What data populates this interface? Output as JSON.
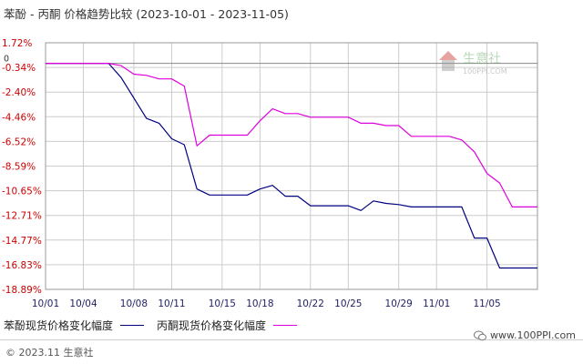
{
  "title": "苯酚 - 丙酮 价格趋势比较 (2023-10-01 - 2023-11-05)",
  "watermark": {
    "brand": "生意社",
    "url": "100PPI.COM"
  },
  "legend": {
    "series1_label": "苯酚现货价格变化幅度",
    "series2_label": "丙酮现货价格变化幅度"
  },
  "footer": {
    "copyright": "© 2023.11 生意社",
    "source": "www.100PPI.com"
  },
  "colors": {
    "series1": "#000080",
    "series2": "#dd00dd",
    "tick_label": "#cc0000",
    "grid": "#cccccc",
    "zero_line": "#888888"
  },
  "chart_data": {
    "type": "line",
    "title": "苯酚 - 丙酮 价格趋势比较 (2023-10-01 - 2023-11-05)",
    "xlabel": "",
    "ylabel": "",
    "x_start": "10/01",
    "x_ticks": [
      "10/01",
      "10/04",
      "10/08",
      "10/11",
      "10/15",
      "10/18",
      "10/22",
      "10/25",
      "10/29",
      "11/01",
      "11/05"
    ],
    "x_tick_days": [
      0,
      3,
      7,
      10,
      14,
      17,
      21,
      24,
      28,
      31,
      35
    ],
    "y_ticks": [
      "1.72%",
      "-0.34%",
      "-2.40%",
      "-4.46%",
      "-6.52%",
      "-8.59%",
      "-10.65%",
      "-12.71%",
      "-14.77%",
      "-16.83%",
      "-18.89%"
    ],
    "ylim": [
      -18.89,
      1.72
    ],
    "zero_label": "0",
    "grid": true,
    "legend_position": "bottom-left",
    "series": [
      {
        "name": "苯酚现货价格变化幅度",
        "color": "#000080",
        "points": [
          [
            0,
            0
          ],
          [
            1,
            0
          ],
          [
            2,
            0
          ],
          [
            3,
            0
          ],
          [
            4,
            0
          ],
          [
            5,
            0
          ],
          [
            6,
            -1.2
          ],
          [
            7,
            -2.9
          ],
          [
            8,
            -4.6
          ],
          [
            9,
            -5.0
          ],
          [
            10,
            -6.3
          ],
          [
            11,
            -6.8
          ],
          [
            12,
            -10.5
          ],
          [
            13,
            -11.0
          ],
          [
            14,
            -11.0
          ],
          [
            15,
            -11.0
          ],
          [
            16,
            -11.0
          ],
          [
            17,
            -10.5
          ],
          [
            18,
            -10.2
          ],
          [
            19,
            -11.1
          ],
          [
            20,
            -11.1
          ],
          [
            21,
            -11.9
          ],
          [
            22,
            -11.9
          ],
          [
            23,
            -11.9
          ],
          [
            24,
            -11.9
          ],
          [
            25,
            -12.3
          ],
          [
            26,
            -11.5
          ],
          [
            27,
            -11.7
          ],
          [
            28,
            -11.8
          ],
          [
            29,
            -12.0
          ],
          [
            30,
            -12.0
          ],
          [
            31,
            -12.0
          ],
          [
            32,
            -12.0
          ],
          [
            33,
            -12.0
          ],
          [
            34,
            -14.6
          ],
          [
            35,
            -14.6
          ],
          [
            36,
            -17.1
          ],
          [
            37,
            -17.1
          ],
          [
            38,
            -17.1
          ],
          [
            39,
            -17.1
          ]
        ]
      },
      {
        "name": "丙酮现货价格变化幅度",
        "color": "#dd00dd",
        "points": [
          [
            0,
            0
          ],
          [
            1,
            0
          ],
          [
            2,
            0
          ],
          [
            3,
            0
          ],
          [
            4,
            0
          ],
          [
            5,
            0
          ],
          [
            6,
            -0.2
          ],
          [
            7,
            -0.9
          ],
          [
            8,
            -1.0
          ],
          [
            9,
            -1.3
          ],
          [
            10,
            -1.3
          ],
          [
            11,
            -1.9
          ],
          [
            12,
            -6.9
          ],
          [
            13,
            -6.0
          ],
          [
            14,
            -6.0
          ],
          [
            15,
            -6.0
          ],
          [
            16,
            -6.0
          ],
          [
            17,
            -4.8
          ],
          [
            18,
            -3.8
          ],
          [
            19,
            -4.2
          ],
          [
            20,
            -4.2
          ],
          [
            21,
            -4.5
          ],
          [
            22,
            -4.5
          ],
          [
            23,
            -4.5
          ],
          [
            24,
            -4.5
          ],
          [
            25,
            -5.0
          ],
          [
            26,
            -5.0
          ],
          [
            27,
            -5.2
          ],
          [
            28,
            -5.2
          ],
          [
            29,
            -6.1
          ],
          [
            30,
            -6.1
          ],
          [
            31,
            -6.1
          ],
          [
            32,
            -6.1
          ],
          [
            33,
            -6.4
          ],
          [
            34,
            -7.4
          ],
          [
            35,
            -9.2
          ],
          [
            36,
            -10.0
          ],
          [
            37,
            -12.0
          ],
          [
            38,
            -12.0
          ],
          [
            39,
            -12.0
          ]
        ]
      }
    ]
  }
}
